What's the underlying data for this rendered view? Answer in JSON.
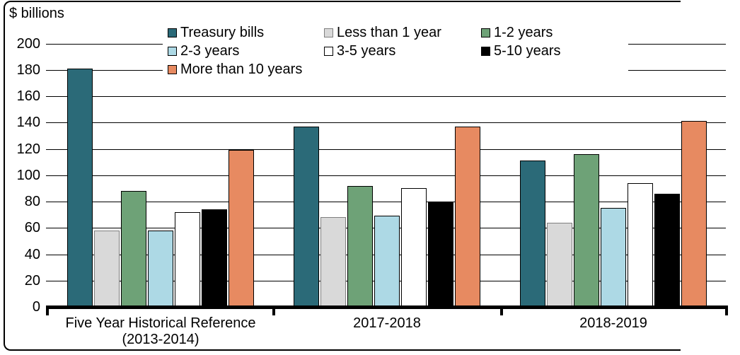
{
  "chart_data": {
    "type": "bar",
    "unit_label": "$ billions",
    "categories": [
      "Five Year Historical Reference\n(2013-2014)",
      "2017-2018",
      "2018-2019"
    ],
    "series": [
      {
        "name": "Treasury bills",
        "color": "#2B6A78",
        "border": "#000000",
        "values": [
          181,
          137,
          111
        ]
      },
      {
        "name": "Less than 1 year",
        "color": "#D9D9D9",
        "border": "#7F7F7F",
        "values": [
          58,
          68,
          64
        ]
      },
      {
        "name": "1-2 years",
        "color": "#6EA277",
        "border": "#000000",
        "values": [
          88,
          92,
          116
        ]
      },
      {
        "name": "2-3 years",
        "color": "#ADD9E5",
        "border": "#000000",
        "values": [
          58,
          69,
          75
        ]
      },
      {
        "name": "3-5 years",
        "color": "#FFFFFF",
        "border": "#000000",
        "values": [
          72,
          90,
          94
        ]
      },
      {
        "name": "5-10 years",
        "color": "#000000",
        "border": "#000000",
        "values": [
          74,
          80,
          86
        ]
      },
      {
        "name": "More than 10 years",
        "color": "#E78A61",
        "border": "#000000",
        "values": [
          119,
          137,
          141
        ]
      }
    ],
    "yticks": [
      0,
      20,
      40,
      60,
      80,
      100,
      120,
      140,
      160,
      180,
      200
    ],
    "ylim": [
      0,
      200
    ],
    "grid": "horizontal",
    "legend_position": "top-center",
    "legend_columns": 3
  }
}
